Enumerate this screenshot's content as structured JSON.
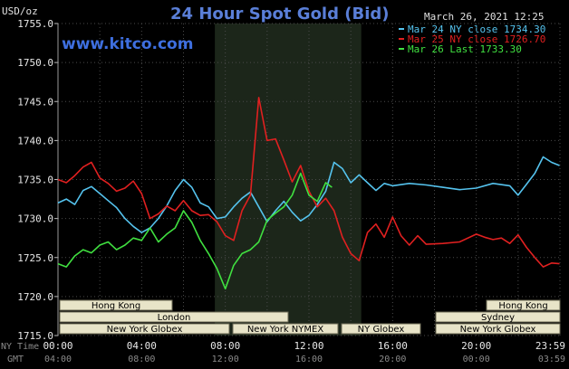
{
  "header": {
    "title": "24 Hour Spot Gold (Bid)",
    "website": "www.kitco.com",
    "timestamp": "March 26, 2021 12:25",
    "y_unit": "USD/oz"
  },
  "chart_data": {
    "type": "line",
    "y_ticks": [
      "1755.0",
      "1750.0",
      "1745.0",
      "1740.0",
      "1735.0",
      "1730.0",
      "1725.0",
      "1720.0",
      "1715.0"
    ],
    "ylim": [
      1715.0,
      1755.0
    ],
    "xlim_hours": [
      0,
      24
    ],
    "x_ticks_ny": [
      "00:00",
      "04:00",
      "08:00",
      "12:00",
      "16:00",
      "20:00",
      "23:59"
    ],
    "x_ticks_gmt": [
      "04:00",
      "08:00",
      "12:00",
      "16:00",
      "20:00",
      "00:00",
      "03:59"
    ],
    "x_row_label_ny": "NY Time",
    "x_row_label_gmt": "GMT",
    "highlight_hours": [
      7.5,
      14.5
    ],
    "series": [
      {
        "name": "Mar 24 NY close 1734.30",
        "color": "#55c3ee",
        "points": [
          [
            0,
            1732.0
          ],
          [
            0.4,
            1732.5
          ],
          [
            0.8,
            1731.8
          ],
          [
            1.2,
            1733.6
          ],
          [
            1.6,
            1734.1
          ],
          [
            2.0,
            1733.2
          ],
          [
            2.4,
            1732.3
          ],
          [
            2.8,
            1731.4
          ],
          [
            3.2,
            1730.0
          ],
          [
            3.6,
            1729.0
          ],
          [
            4.0,
            1728.2
          ],
          [
            4.4,
            1728.8
          ],
          [
            4.8,
            1730.0
          ],
          [
            5.2,
            1731.6
          ],
          [
            5.6,
            1733.6
          ],
          [
            6.0,
            1735.0
          ],
          [
            6.4,
            1734.0
          ],
          [
            6.8,
            1732.0
          ],
          [
            7.2,
            1731.5
          ],
          [
            7.6,
            1730.0
          ],
          [
            8.0,
            1730.2
          ],
          [
            8.4,
            1731.5
          ],
          [
            8.8,
            1732.6
          ],
          [
            9.2,
            1733.4
          ],
          [
            9.6,
            1731.5
          ],
          [
            10.0,
            1729.6
          ],
          [
            10.4,
            1731.0
          ],
          [
            10.8,
            1732.2
          ],
          [
            11.2,
            1730.8
          ],
          [
            11.6,
            1729.7
          ],
          [
            12.0,
            1730.4
          ],
          [
            12.4,
            1731.8
          ],
          [
            12.8,
            1733.5
          ],
          [
            13.2,
            1737.2
          ],
          [
            13.6,
            1736.4
          ],
          [
            14.0,
            1734.6
          ],
          [
            14.4,
            1735.6
          ],
          [
            14.8,
            1734.6
          ],
          [
            15.2,
            1733.6
          ],
          [
            15.6,
            1734.5
          ],
          [
            16.0,
            1734.2
          ],
          [
            16.8,
            1734.5
          ],
          [
            17.6,
            1734.3
          ],
          [
            18.4,
            1734.0
          ],
          [
            19.2,
            1733.7
          ],
          [
            20.0,
            1733.9
          ],
          [
            20.8,
            1734.5
          ],
          [
            21.6,
            1734.2
          ],
          [
            22.0,
            1733.0
          ],
          [
            22.4,
            1734.4
          ],
          [
            22.8,
            1735.8
          ],
          [
            23.2,
            1737.9
          ],
          [
            23.6,
            1737.2
          ],
          [
            23.98,
            1736.8
          ]
        ]
      },
      {
        "name": "Mar 25 NY close 1726.70",
        "color": "#e02020",
        "points": [
          [
            0,
            1735.0
          ],
          [
            0.4,
            1734.6
          ],
          [
            0.8,
            1735.5
          ],
          [
            1.2,
            1736.6
          ],
          [
            1.6,
            1737.2
          ],
          [
            2.0,
            1735.2
          ],
          [
            2.4,
            1734.5
          ],
          [
            2.8,
            1733.5
          ],
          [
            3.2,
            1733.9
          ],
          [
            3.6,
            1734.8
          ],
          [
            4.0,
            1733.2
          ],
          [
            4.4,
            1730.0
          ],
          [
            4.8,
            1730.6
          ],
          [
            5.2,
            1731.6
          ],
          [
            5.6,
            1731.0
          ],
          [
            6.0,
            1732.3
          ],
          [
            6.4,
            1731.0
          ],
          [
            6.8,
            1730.4
          ],
          [
            7.2,
            1730.5
          ],
          [
            7.6,
            1729.6
          ],
          [
            8.0,
            1727.8
          ],
          [
            8.4,
            1727.2
          ],
          [
            8.8,
            1731.0
          ],
          [
            9.2,
            1733.0
          ],
          [
            9.6,
            1745.5
          ],
          [
            10.0,
            1740.0
          ],
          [
            10.4,
            1740.2
          ],
          [
            10.8,
            1737.5
          ],
          [
            11.2,
            1734.7
          ],
          [
            11.6,
            1736.8
          ],
          [
            12.0,
            1733.5
          ],
          [
            12.4,
            1731.5
          ],
          [
            12.8,
            1732.6
          ],
          [
            13.2,
            1731.0
          ],
          [
            13.6,
            1727.6
          ],
          [
            14.0,
            1725.5
          ],
          [
            14.4,
            1724.6
          ],
          [
            14.8,
            1728.2
          ],
          [
            15.2,
            1729.3
          ],
          [
            15.6,
            1727.6
          ],
          [
            16.0,
            1730.2
          ],
          [
            16.4,
            1727.8
          ],
          [
            16.8,
            1726.6
          ],
          [
            17.2,
            1727.8
          ],
          [
            17.6,
            1726.7
          ],
          [
            18.4,
            1726.8
          ],
          [
            19.2,
            1727.0
          ],
          [
            20.0,
            1728.0
          ],
          [
            20.4,
            1727.6
          ],
          [
            20.8,
            1727.3
          ],
          [
            21.2,
            1727.5
          ],
          [
            21.6,
            1726.8
          ],
          [
            22.0,
            1727.9
          ],
          [
            22.4,
            1726.3
          ],
          [
            22.8,
            1725.0
          ],
          [
            23.2,
            1723.8
          ],
          [
            23.6,
            1724.3
          ],
          [
            23.98,
            1724.2
          ]
        ]
      },
      {
        "name": "Mar 26 Last 1733.30",
        "color": "#40e040",
        "points": [
          [
            0,
            1724.2
          ],
          [
            0.4,
            1723.8
          ],
          [
            0.8,
            1725.2
          ],
          [
            1.2,
            1726.0
          ],
          [
            1.6,
            1725.6
          ],
          [
            2.0,
            1726.6
          ],
          [
            2.4,
            1727.0
          ],
          [
            2.8,
            1726.0
          ],
          [
            3.2,
            1726.6
          ],
          [
            3.6,
            1727.5
          ],
          [
            4.0,
            1727.2
          ],
          [
            4.4,
            1728.8
          ],
          [
            4.8,
            1727.0
          ],
          [
            5.2,
            1728.0
          ],
          [
            5.6,
            1728.8
          ],
          [
            6.0,
            1731.0
          ],
          [
            6.4,
            1729.5
          ],
          [
            6.8,
            1727.2
          ],
          [
            7.2,
            1725.5
          ],
          [
            7.6,
            1723.6
          ],
          [
            8.0,
            1721.0
          ],
          [
            8.4,
            1724.0
          ],
          [
            8.8,
            1725.5
          ],
          [
            9.2,
            1726.0
          ],
          [
            9.6,
            1727.0
          ],
          [
            10.0,
            1729.8
          ],
          [
            10.4,
            1730.7
          ],
          [
            10.8,
            1731.5
          ],
          [
            11.2,
            1733.0
          ],
          [
            11.6,
            1735.8
          ],
          [
            12.0,
            1733.0
          ],
          [
            12.4,
            1732.2
          ],
          [
            12.8,
            1734.6
          ],
          [
            13.1,
            1734.0
          ]
        ]
      }
    ]
  },
  "sessions": {
    "rows": [
      {
        "label_day": "Hong Kong",
        "label_eve": "Hong Kong"
      },
      {
        "label_day": "London",
        "label_eve": "Sydney"
      },
      {
        "label_day": "New York Globex",
        "label_mid": "New York NYMEX",
        "label_mid2": "NY Globex",
        "label_eve": "New York Globex"
      }
    ]
  }
}
